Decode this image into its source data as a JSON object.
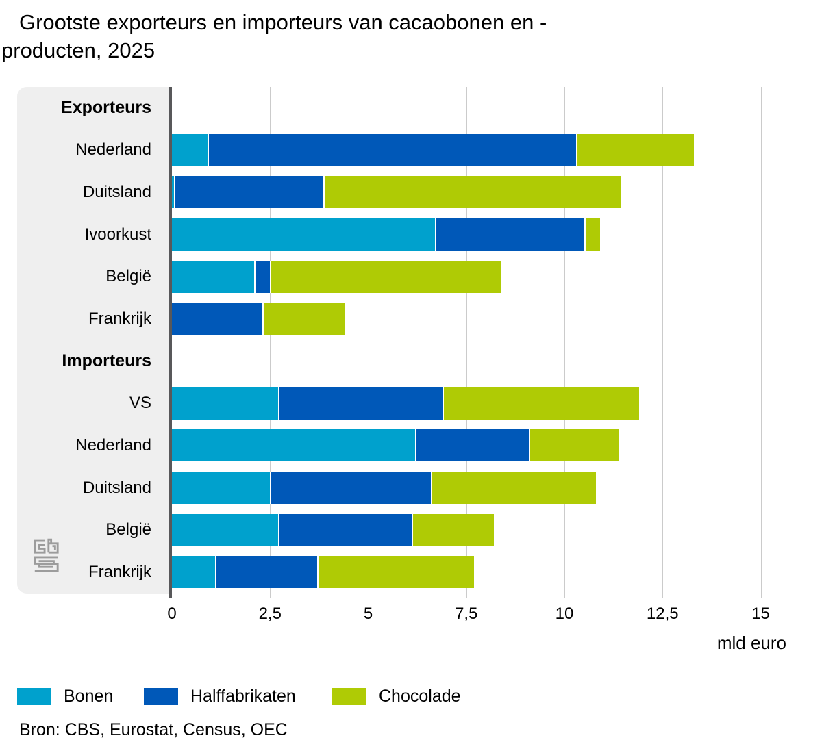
{
  "title": {
    "text": "Grootste exporteurs en importeurs van cacaobonen en -producten, 2025",
    "line1": "Grootste exporteurs en importeurs van cacaobonen en -",
    "line2": "producten, 2025"
  },
  "chart_data": {
    "type": "bar",
    "orientation": "horizontal",
    "stacked": true,
    "unit_label": "mld euro",
    "xlim": [
      0,
      15
    ],
    "x_tick_values": [
      0,
      2.5,
      5,
      7.5,
      10,
      12.5,
      15
    ],
    "x_ticks": [
      "0",
      "2,5",
      "5",
      "7,5",
      "10",
      "12,5",
      "15"
    ],
    "series_names": [
      "Bonen",
      "Halffabrikaten",
      "Chocolade"
    ],
    "series_colors": [
      "#00a1cd",
      "#0058b8",
      "#afcb05"
    ],
    "groups": [
      {
        "header": "Exporteurs",
        "rows": [
          {
            "label": "Nederland",
            "values": [
              0.9,
              9.4,
              3.0
            ]
          },
          {
            "label": "Duitsland",
            "values": [
              0.05,
              3.8,
              7.6
            ]
          },
          {
            "label": "Ivoorkust",
            "values": [
              6.7,
              3.8,
              0.4
            ]
          },
          {
            "label": "België",
            "values": [
              2.1,
              0.4,
              5.9
            ]
          },
          {
            "label": "Frankrijk",
            "values": [
              0,
              2.3,
              2.1
            ]
          }
        ]
      },
      {
        "header": "Importeurs",
        "rows": [
          {
            "label": "VS",
            "values": [
              2.7,
              4.2,
              5.0
            ]
          },
          {
            "label": "Nederland",
            "values": [
              6.2,
              2.9,
              2.3
            ]
          },
          {
            "label": "Duitsland",
            "values": [
              2.5,
              4.1,
              4.2
            ]
          },
          {
            "label": "België",
            "values": [
              2.7,
              3.4,
              2.1
            ]
          },
          {
            "label": "Frankrijk",
            "values": [
              1.1,
              2.6,
              4.0
            ]
          }
        ]
      }
    ]
  },
  "legend": {
    "items": [
      {
        "label": "Bonen",
        "color": "#00a1cd"
      },
      {
        "label": "Halffabrikaten",
        "color": "#0058b8"
      },
      {
        "label": "Chocolade",
        "color": "#afcb05"
      }
    ]
  },
  "source": "Bron: CBS, Eurostat, Census, OEC",
  "logo_name": "cbs",
  "style_colors": {
    "axis_line": "#58585a",
    "gridline": "#cbcbcb",
    "label_panel": "#efefef"
  }
}
